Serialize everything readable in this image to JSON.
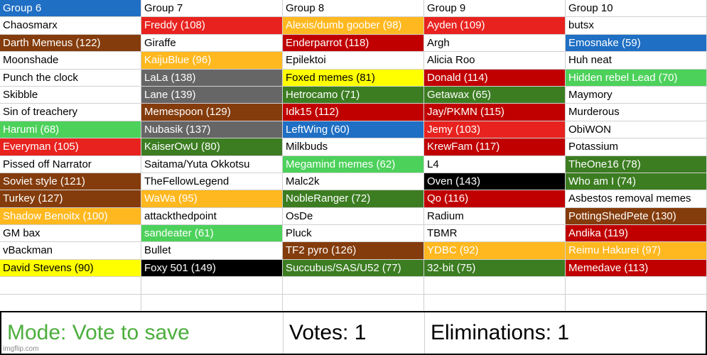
{
  "colors": {
    "white": "#ffffff",
    "blue": "#1f6fc4",
    "red": "#e8231f",
    "darkred": "#c00000",
    "brown": "#843c0c",
    "orange": "#ffb81f",
    "gray": "#666666",
    "darkgreen": "#3c7d22",
    "lightgreen": "#4cd15b",
    "yellow": "#ffff00",
    "black": "#000000"
  },
  "columns": [
    {
      "header": "Group 6",
      "header_color": "blue",
      "cells": [
        {
          "text": "Chaosmarx",
          "color": "white"
        },
        {
          "text": "Darth Memeus (122)",
          "color": "brown"
        },
        {
          "text": "Moonshade",
          "color": "white"
        },
        {
          "text": "Punch the clock",
          "color": "white"
        },
        {
          "text": "Skibble",
          "color": "white"
        },
        {
          "text": "Sin of treachery",
          "color": "white"
        },
        {
          "text": "Harumi (68)",
          "color": "lightgreen"
        },
        {
          "text": "Everyman (105)",
          "color": "red"
        },
        {
          "text": "Pissed off Narrator",
          "color": "white"
        },
        {
          "text": "Soviet style (121)",
          "color": "brown"
        },
        {
          "text": "Turkey (127)",
          "color": "brown"
        },
        {
          "text": "Shadow Benoitx (100)",
          "color": "orange"
        },
        {
          "text": "GM bax",
          "color": "white"
        },
        {
          "text": "vBackman",
          "color": "white"
        },
        {
          "text": "David Stevens (90)",
          "color": "yellow"
        }
      ]
    },
    {
      "header": "Group 7",
      "header_color": "white",
      "cells": [
        {
          "text": "Freddy (108)",
          "color": "red"
        },
        {
          "text": "Giraffe",
          "color": "white"
        },
        {
          "text": "KaijuBlue (96)",
          "color": "orange"
        },
        {
          "text": "LaLa (138)",
          "color": "gray"
        },
        {
          "text": "Lane (139)",
          "color": "gray"
        },
        {
          "text": "Memespoon (129)",
          "color": "brown"
        },
        {
          "text": "Nubasik (137)",
          "color": "gray"
        },
        {
          "text": "KaiserOwU (80)",
          "color": "darkgreen"
        },
        {
          "text": "Saitama/Yuta Okkotsu",
          "color": "white"
        },
        {
          "text": "TheFellowLegend",
          "color": "white"
        },
        {
          "text": "WaWa (95)",
          "color": "orange"
        },
        {
          "text": "attackthedpoint",
          "color": "white"
        },
        {
          "text": "sandeater (61)",
          "color": "lightgreen"
        },
        {
          "text": "Bullet",
          "color": "white"
        },
        {
          "text": "Foxy 501 (149)",
          "color": "black"
        }
      ]
    },
    {
      "header": "Group 8",
      "header_color": "white",
      "cells": [
        {
          "text": "Alexis/dumb goober (98)",
          "color": "orange"
        },
        {
          "text": "Enderparrot (118)",
          "color": "darkred"
        },
        {
          "text": "Epilektoi",
          "color": "white"
        },
        {
          "text": "Foxed memes (81)",
          "color": "yellow"
        },
        {
          "text": "Hetrocamo (71)",
          "color": "darkgreen"
        },
        {
          "text": "Idk15 (112)",
          "color": "darkred"
        },
        {
          "text": "LeftWing (60)",
          "color": "blue"
        },
        {
          "text": "Milkbuds",
          "color": "white"
        },
        {
          "text": "Megamind memes (62)",
          "color": "lightgreen"
        },
        {
          "text": "Malc2k",
          "color": "white"
        },
        {
          "text": "NobleRanger (72)",
          "color": "darkgreen"
        },
        {
          "text": "OsDe",
          "color": "white"
        },
        {
          "text": "Pluck",
          "color": "white"
        },
        {
          "text": "TF2 pyro (126)",
          "color": "brown"
        },
        {
          "text": "Succubus/SAS/U52 (77)",
          "color": "darkgreen"
        }
      ]
    },
    {
      "header": "Group 9",
      "header_color": "white",
      "cells": [
        {
          "text": "Ayden (109)",
          "color": "red"
        },
        {
          "text": "Argh",
          "color": "white"
        },
        {
          "text": "Alicia Roo",
          "color": "white"
        },
        {
          "text": "Donald (114)",
          "color": "darkred"
        },
        {
          "text": "Getawax (65)",
          "color": "darkgreen"
        },
        {
          "text": "Jay/PKMN (115)",
          "color": "darkred"
        },
        {
          "text": "Jemy (103)",
          "color": "red"
        },
        {
          "text": "KrewFam (117)",
          "color": "darkred"
        },
        {
          "text": "L4",
          "color": "white"
        },
        {
          "text": "Oven (143)",
          "color": "black"
        },
        {
          "text": "Qo (116)",
          "color": "darkred"
        },
        {
          "text": "Radium",
          "color": "white"
        },
        {
          "text": "TBMR",
          "color": "white"
        },
        {
          "text": "YDBC (92)",
          "color": "orange"
        },
        {
          "text": "32-bit (75)",
          "color": "darkgreen"
        }
      ]
    },
    {
      "header": "Group 10",
      "header_color": "white",
      "cells": [
        {
          "text": "butsx",
          "color": "white"
        },
        {
          "text": "Emosnake (59)",
          "color": "blue"
        },
        {
          "text": "Huh neat",
          "color": "white"
        },
        {
          "text": "Hidden rebel Lead (70)",
          "color": "lightgreen"
        },
        {
          "text": "Maymory",
          "color": "white"
        },
        {
          "text": "Murderous",
          "color": "white"
        },
        {
          "text": "ObiWON",
          "color": "white"
        },
        {
          "text": "Potassium",
          "color": "white"
        },
        {
          "text": "TheOne16 (78)",
          "color": "darkgreen"
        },
        {
          "text": "Who am I (74)",
          "color": "darkgreen"
        },
        {
          "text": "Asbestos removal memes",
          "color": "white"
        },
        {
          "text": "PottingShedPete (130)",
          "color": "brown"
        },
        {
          "text": "Andika (119)",
          "color": "darkred"
        },
        {
          "text": "Reimu Hakurei (97)",
          "color": "orange"
        },
        {
          "text": "Memedave (113)",
          "color": "darkred"
        }
      ]
    }
  ],
  "status": {
    "mode": "Mode: Vote to save",
    "votes": "Votes: 1",
    "eliminations": "Eliminations: 1"
  },
  "watermark": "imgflip.com"
}
